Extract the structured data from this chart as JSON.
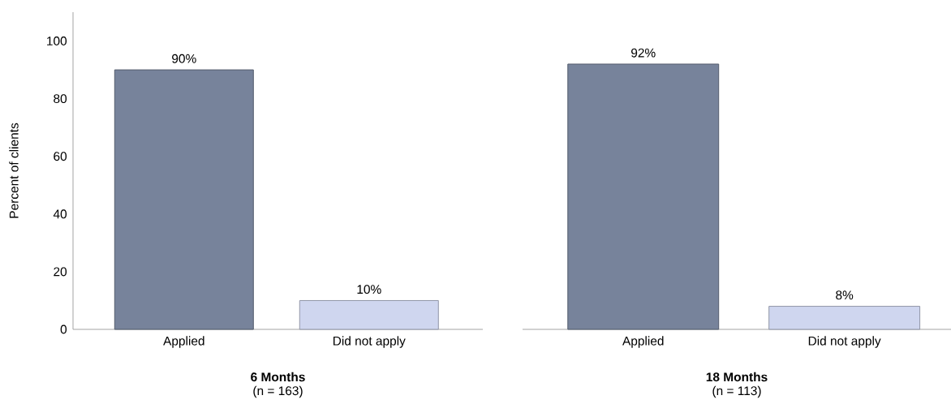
{
  "chart_data": [
    {
      "type": "bar",
      "title": "6 Months",
      "subtitle": "(n = 163)",
      "ylabel": "Percent of clients",
      "categories": [
        "Applied",
        "Did not apply"
      ],
      "values": [
        90,
        10
      ],
      "value_labels": [
        "90%",
        "10%"
      ],
      "colors": [
        "#77839b",
        "#cfd6ef"
      ],
      "ylim": [
        0,
        110
      ],
      "yticks": [
        0,
        20,
        40,
        60,
        80,
        100
      ]
    },
    {
      "type": "bar",
      "title": "18 Months",
      "subtitle": "(n = 113)",
      "categories": [
        "Applied",
        "Did not apply"
      ],
      "values": [
        92,
        8
      ],
      "value_labels": [
        "92%",
        "8%"
      ],
      "colors": [
        "#77839b",
        "#cfd6ef"
      ],
      "tick_labels": "x"
    }
  ]
}
